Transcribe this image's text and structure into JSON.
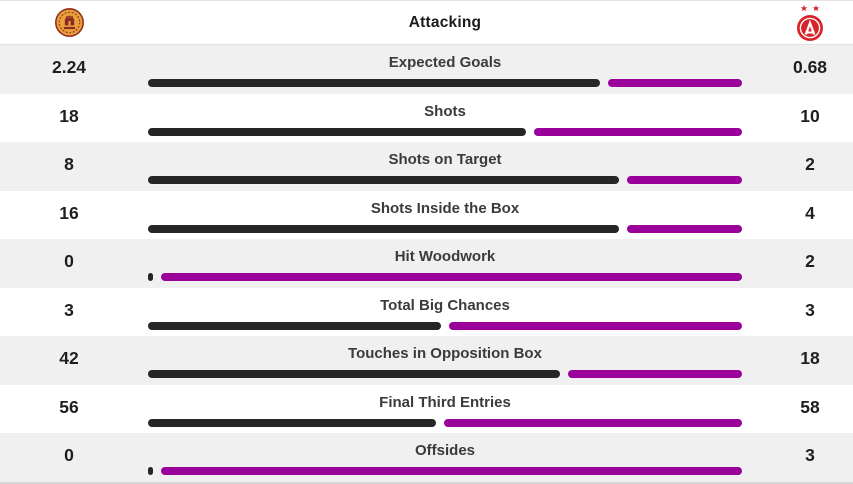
{
  "header": {
    "title": "Attacking",
    "home_crest": "motherwell-crest",
    "away_crest": "aberdeen-crest"
  },
  "colors": {
    "home_bar": "#262626",
    "away_bar": "#9a009a",
    "row_alt_bg": "#f0f0f0",
    "border": "#e2e2e2",
    "home_crest_amber": "#e9a13b",
    "home_crest_claret": "#8e2a25",
    "away_crest_red": "#d8232a"
  },
  "chart_data": {
    "type": "bar",
    "title": "Attacking",
    "layout": "horizontal-paired-comparison",
    "legend_position": "none",
    "categories": [
      "Expected Goals",
      "Shots",
      "Shots on Target",
      "Shots Inside the Box",
      "Hit Woodwork",
      "Total Big Chances",
      "Touches in Opposition Box",
      "Final Third Entries",
      "Offsides"
    ],
    "series": [
      {
        "name": "home",
        "values": [
          2.24,
          18,
          8,
          16,
          0,
          3,
          42,
          56,
          0
        ]
      },
      {
        "name": "away",
        "values": [
          0.68,
          10,
          2,
          4,
          2,
          3,
          18,
          58,
          3
        ]
      }
    ]
  }
}
